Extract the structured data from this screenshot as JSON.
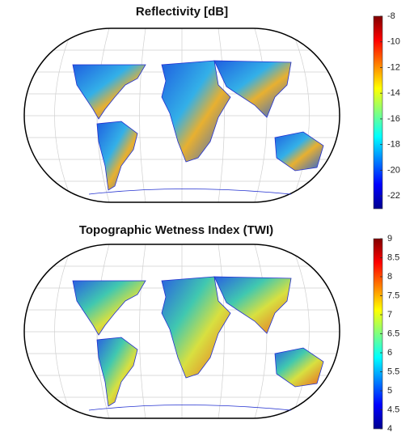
{
  "panels": [
    {
      "title": "Reflectivity [dB]",
      "colorbar": {
        "lim": [
          -23,
          -8
        ],
        "ticks": [
          -22,
          -20,
          -18,
          -16,
          -14,
          -12,
          -10,
          -8
        ]
      }
    },
    {
      "title": "Topographic Wetness Index (TWI)",
      "colorbar": {
        "lim": [
          4,
          9
        ],
        "ticks": [
          4,
          4.5,
          5,
          5.5,
          6,
          6.5,
          7,
          7.5,
          8,
          8.5,
          9
        ]
      }
    }
  ]
}
